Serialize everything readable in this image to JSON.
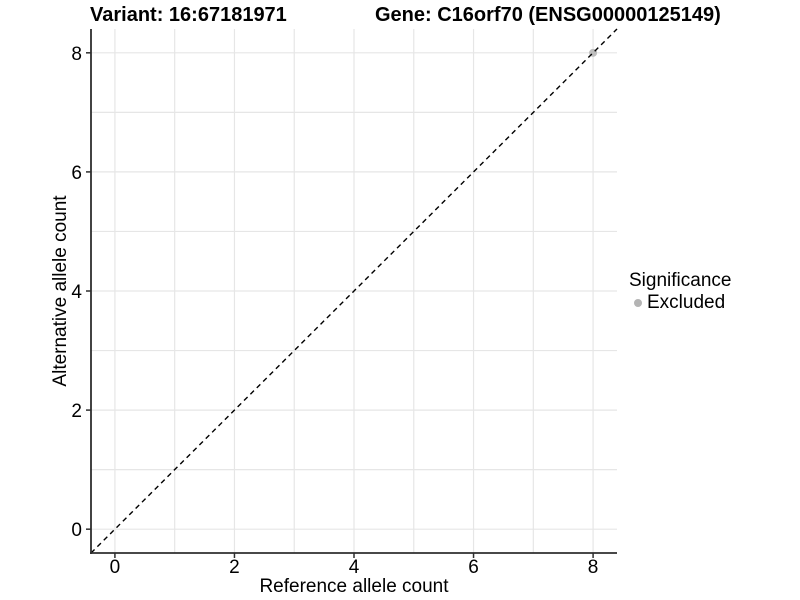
{
  "header": {
    "variant_title": "Variant: 16:67181971",
    "gene_title": "Gene: C16orf70 (ENSG00000125149)"
  },
  "chart_data": {
    "type": "scatter",
    "titles": [
      "Variant: 16:67181971",
      "Gene: C16orf70 (ENSG00000125149)"
    ],
    "xlabel": "Reference allele count",
    "ylabel": "Alternative allele count",
    "xlim": [
      -0.4,
      8.4
    ],
    "ylim": [
      -0.4,
      8.4
    ],
    "x_ticks": [
      0,
      2,
      4,
      6,
      8
    ],
    "y_ticks": [
      0,
      2,
      4,
      6,
      8
    ],
    "grid_values": [
      0,
      1,
      2,
      3,
      4,
      5,
      6,
      7,
      8
    ],
    "grid_on": true,
    "points": [
      {
        "x": 8,
        "y": 8,
        "significance": "Excluded"
      }
    ],
    "identity_line": {
      "from": [
        -0.4,
        -0.4
      ],
      "to": [
        8.4,
        8.4
      ],
      "style": "dashed"
    },
    "legend_position": "right"
  },
  "legend": {
    "title": "Significance",
    "items": [
      {
        "label": "Excluded",
        "color": "#b4b4b4"
      }
    ]
  },
  "colors": {
    "background": "#ffffff",
    "grid": "#e6e6e6",
    "axis": "#2e2e2e",
    "text": "#000000",
    "identity_line": "#000000",
    "point": "#bebebe"
  }
}
